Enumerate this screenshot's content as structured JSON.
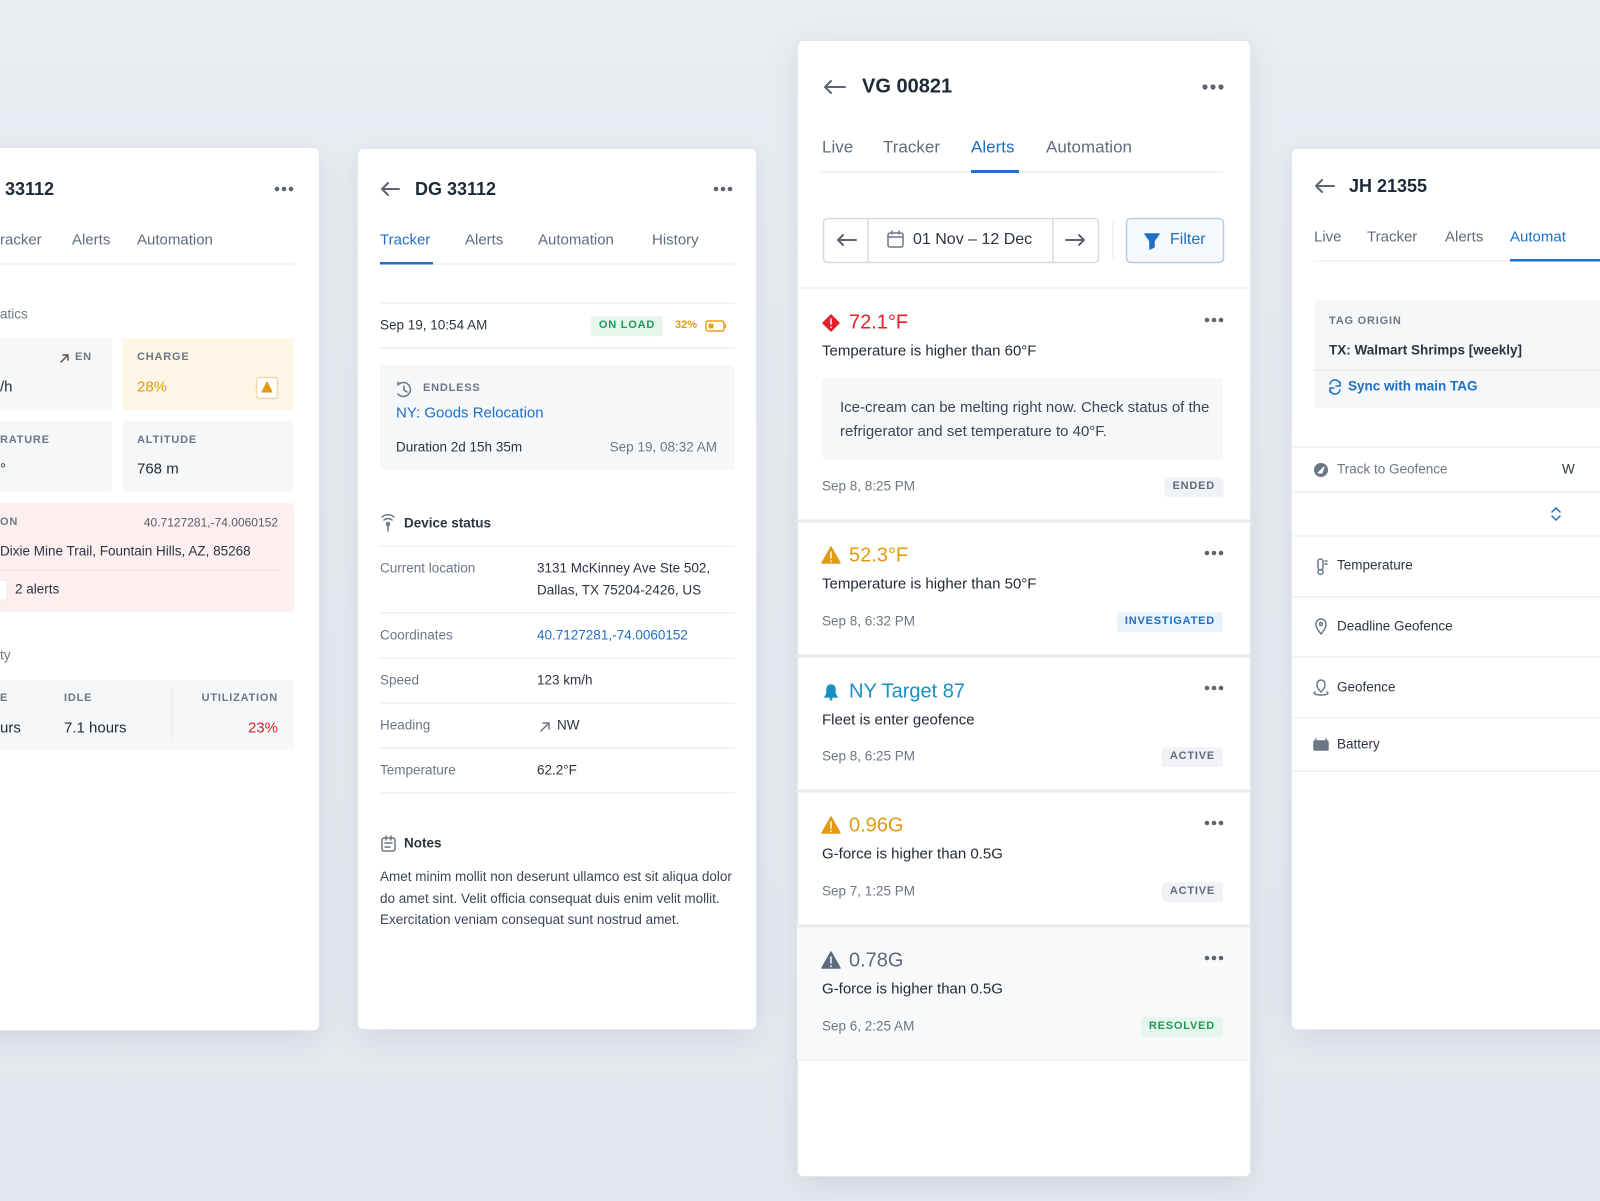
{
  "left_panel": {
    "title": "33112",
    "tabs": [
      "racker",
      "Alerts",
      "Automation"
    ],
    "section": "atics",
    "speed": {
      "label": "EN",
      "value": "/h"
    },
    "charge": {
      "label": "CHARGE",
      "value": "28%"
    },
    "temperature": {
      "label": "RATURE",
      "value": "°"
    },
    "altitude": {
      "label": "ALTITUDE",
      "value": "768 m"
    },
    "location": {
      "label": "ON",
      "coordinates": "40.7127281,-74.0060152",
      "address": "Dixie Mine Trail, Fountain Hills, AZ, 85268",
      "alerts": "2 alerts"
    },
    "section2": "ty",
    "stats": [
      {
        "label": "E",
        "value": "urs"
      },
      {
        "label": "IDLE",
        "value": "7.1 hours"
      },
      {
        "label": "UTILIZATION",
        "value": "23%"
      }
    ]
  },
  "tracker_panel": {
    "title": "DG 33112",
    "tabs": [
      "Tracker",
      "Alerts",
      "Automation",
      "History"
    ],
    "timestamp": "Sep 19, 10:54 AM",
    "status": "ON LOAD",
    "battery": "32%",
    "trip": {
      "type": "ENDLESS",
      "name": "NY: Goods Relocation",
      "duration": "Duration 2d 15h 35m",
      "start": "Sep 19, 08:32 AM"
    },
    "device_status": {
      "title": "Device status",
      "rows": [
        {
          "label": "Current location",
          "lines": [
            "3131 McKinney Ave Ste 502,",
            "Dallas, TX 75204-2426, US"
          ]
        },
        {
          "label": "Coordinates",
          "value": "40.7127281,-74.0060152"
        },
        {
          "label": "Speed",
          "value": "123 km/h"
        },
        {
          "label": "Heading",
          "value": "NW"
        },
        {
          "label": "Temperature",
          "value": "62.2°F"
        }
      ]
    },
    "notes": {
      "title": "Notes",
      "text": "Amet minim mollit non deserunt ullamco est sit aliqua dolor do amet sint. Velit officia consequat duis enim velit mollit. Exercitation veniam consequat sunt nostrud amet."
    }
  },
  "alerts_panel": {
    "title": "VG 00821",
    "tabs": [
      "Live",
      "Tracker",
      "Alerts",
      "Automation"
    ],
    "date_range": "01 Nov – 12 Dec",
    "filter": "Filter",
    "alerts": [
      {
        "value": "72.1°F",
        "description": "Temperature is higher than 60°F",
        "note": "Ice-cream can be melting right now. Check status of the refrigerator and set temperature to 40°F.",
        "time": "Sep 8, 8:25 PM",
        "status": "ENDED"
      },
      {
        "value": "52.3°F",
        "description": "Temperature is higher than 50°F",
        "time": "Sep 8, 6:32 PM",
        "status": "INVESTIGATED"
      },
      {
        "value": "NY Target 87",
        "description": "Fleet is enter geofence",
        "time": "Sep 8, 6:25 PM",
        "status": "ACTIVE"
      },
      {
        "value": "0.96G",
        "description": "G-force is higher than 0.5G",
        "time": "Sep 7, 1:25 PM",
        "status": "ACTIVE"
      },
      {
        "value": "0.78G",
        "description": "G-force is higher than 0.5G",
        "time": "Sep 6, 2:25 AM",
        "status": "RESOLVED"
      }
    ]
  },
  "right_panel": {
    "title": "JH 21355",
    "tabs": [
      "Live",
      "Tracker",
      "Alerts",
      "Automat"
    ],
    "tag_origin": {
      "label": "TAG ORIGIN",
      "value": "TX: Walmart Shrimps [weekly]",
      "action": "Sync with main TAG"
    },
    "rules": [
      "Track to Geofence",
      "Temperature",
      "Deadline Geofence",
      "Geofence",
      "Battery"
    ],
    "rule_value": "W"
  }
}
